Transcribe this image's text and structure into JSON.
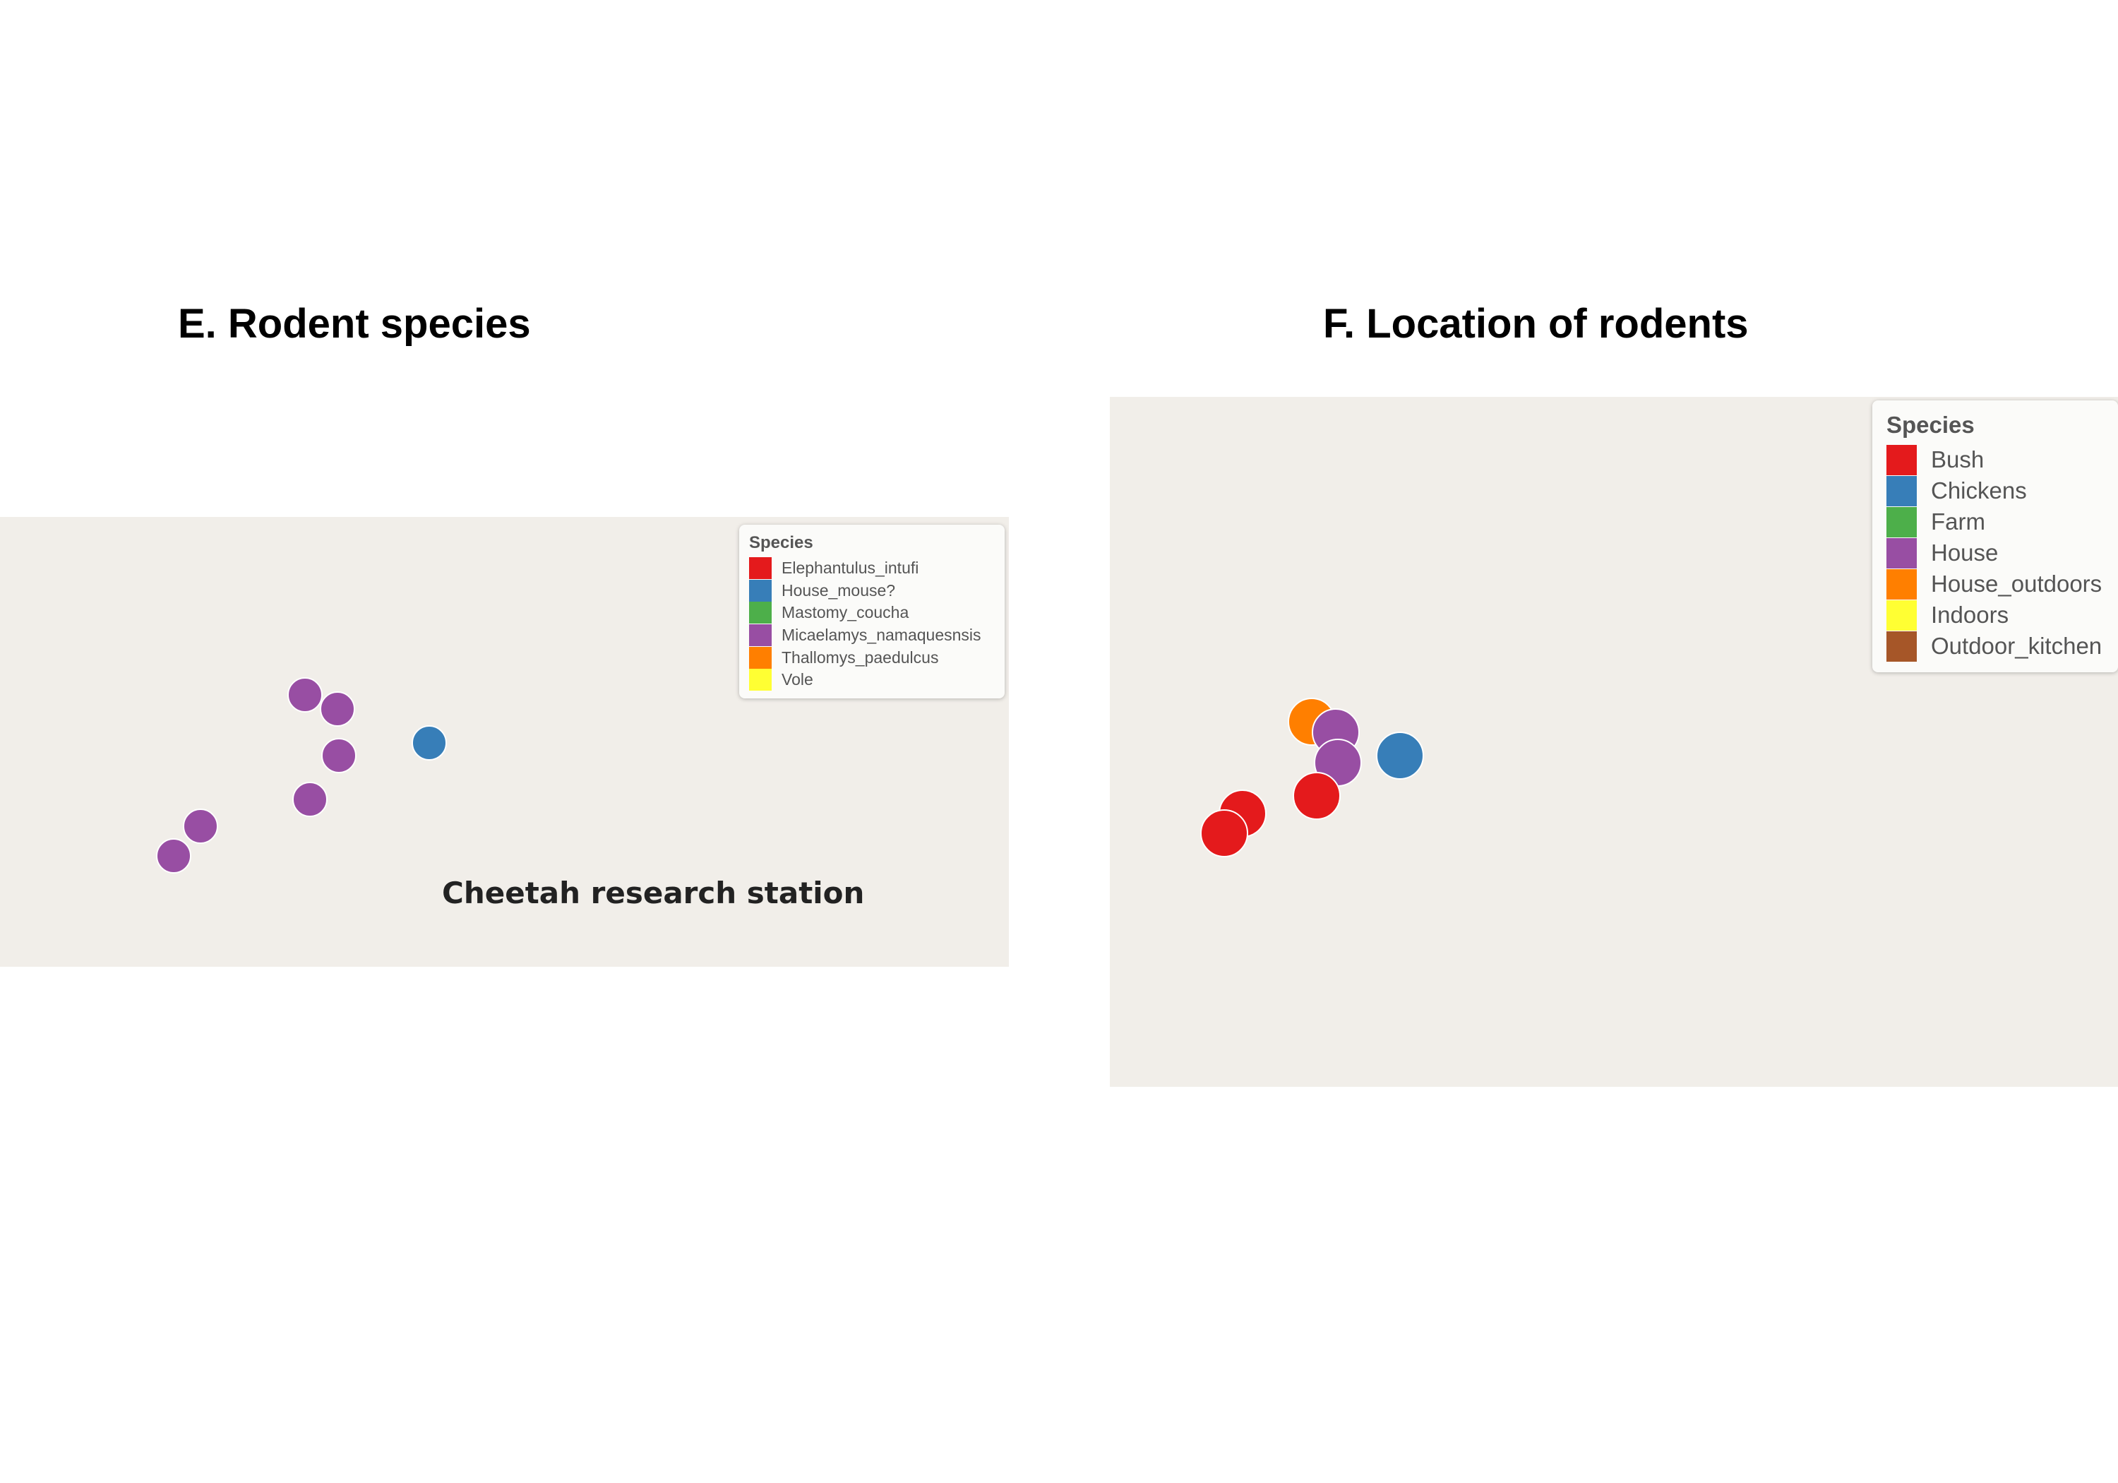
{
  "panel_e": {
    "title": "E. Rodent species",
    "place_label": "Cheetah research station",
    "legend": {
      "title": "Species",
      "items": [
        {
          "label": "Elephantulus_intufi",
          "color": "#e41a1c"
        },
        {
          "label": "House_mouse?",
          "color": "#377eb8"
        },
        {
          "label": "Mastomy_coucha",
          "color": "#4daf4a"
        },
        {
          "label": "Micaelamys_namaquesnsis",
          "color": "#984ea3"
        },
        {
          "label": "Thallomys_paedulcus",
          "color": "#ff7f00"
        },
        {
          "label": "Vole",
          "color": "#ffff33"
        }
      ]
    },
    "points": [
      {
        "category": "Micaelamys_namaquesnsis"
      },
      {
        "category": "Micaelamys_namaquesnsis"
      },
      {
        "category": "Micaelamys_namaquesnsis"
      },
      {
        "category": "Micaelamys_namaquesnsis"
      },
      {
        "category": "Micaelamys_namaquesnsis"
      },
      {
        "category": "Micaelamys_namaquesnsis"
      },
      {
        "category": "House_mouse?"
      }
    ]
  },
  "panel_f": {
    "title": "F. Location of rodents",
    "legend": {
      "title": "Species",
      "items": [
        {
          "label": "Bush",
          "color": "#e41a1c"
        },
        {
          "label": "Chickens",
          "color": "#377eb8"
        },
        {
          "label": "Farm",
          "color": "#4daf4a"
        },
        {
          "label": "House",
          "color": "#984ea3"
        },
        {
          "label": "House_outdoors",
          "color": "#ff7f00"
        },
        {
          "label": "Indoors",
          "color": "#ffff33"
        },
        {
          "label": "Outdoor_kitchen",
          "color": "#a65628"
        }
      ]
    },
    "points": [
      {
        "category": "House_outdoors"
      },
      {
        "category": "House"
      },
      {
        "category": "House"
      },
      {
        "category": "Chickens"
      },
      {
        "category": "Bush"
      },
      {
        "category": "Bush"
      },
      {
        "category": "Bush"
      }
    ]
  }
}
